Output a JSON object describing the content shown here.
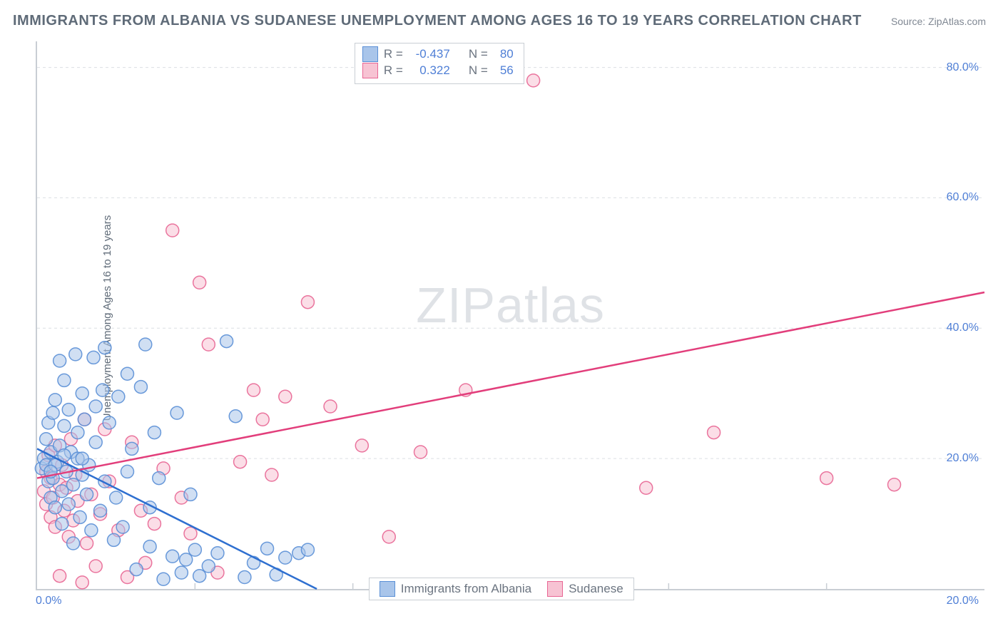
{
  "title": "IMMIGRANTS FROM ALBANIA VS SUDANESE UNEMPLOYMENT AMONG AGES 16 TO 19 YEARS CORRELATION CHART",
  "source_prefix": "Source: ",
  "source_name": "ZipAtlas.com",
  "ylabel": "Unemployment Among Ages 16 to 19 years",
  "watermark": {
    "bold": "ZIP",
    "thin": "atlas"
  },
  "chart": {
    "type": "scatter",
    "xlim": [
      0,
      21.0
    ],
    "ylim": [
      0,
      84.0
    ],
    "x_ticks": [
      0.0,
      20.0
    ],
    "x_tick_labels": [
      "0.0%",
      "20.0%"
    ],
    "y_ticks": [
      20.0,
      40.0,
      60.0,
      80.0
    ],
    "y_tick_labels": [
      "20.0%",
      "40.0%",
      "60.0%",
      "80.0%"
    ],
    "x_minor_ticks": [
      3.5,
      7.0,
      10.5,
      14.0,
      17.5
    ],
    "axis_color": "#c9ced4",
    "grid_color": "#dcdfe3",
    "background_color": "#ffffff",
    "marker_radius": 9,
    "marker_opacity": 0.55,
    "marker_stroke_opacity": 0.9,
    "line_width": 2.5,
    "series": [
      {
        "name": "Immigrants from Albania",
        "color_fill": "#a9c5ea",
        "color_stroke": "#5a8fd6",
        "line_color": "#2e6fd0",
        "R": "-0.437",
        "N": "80",
        "regression": {
          "x1": 0.0,
          "y1": 21.5,
          "x2": 6.2,
          "y2": 0.0,
          "dash_tail": true
        },
        "points": [
          [
            0.1,
            18.5
          ],
          [
            0.15,
            20.0
          ],
          [
            0.2,
            19.0
          ],
          [
            0.2,
            23.0
          ],
          [
            0.25,
            25.5
          ],
          [
            0.25,
            16.5
          ],
          [
            0.3,
            21.0
          ],
          [
            0.3,
            14.0
          ],
          [
            0.35,
            27.0
          ],
          [
            0.35,
            17.0
          ],
          [
            0.4,
            29.0
          ],
          [
            0.4,
            12.5
          ],
          [
            0.45,
            19.5
          ],
          [
            0.5,
            35.0
          ],
          [
            0.5,
            22.0
          ],
          [
            0.55,
            15.0
          ],
          [
            0.55,
            10.0
          ],
          [
            0.6,
            25.0
          ],
          [
            0.6,
            32.0
          ],
          [
            0.65,
            18.0
          ],
          [
            0.7,
            27.5
          ],
          [
            0.7,
            13.0
          ],
          [
            0.75,
            21.0
          ],
          [
            0.8,
            7.0
          ],
          [
            0.8,
            16.0
          ],
          [
            0.85,
            36.0
          ],
          [
            0.9,
            24.0
          ],
          [
            0.9,
            20.0
          ],
          [
            0.95,
            11.0
          ],
          [
            1.0,
            30.0
          ],
          [
            1.0,
            17.5
          ],
          [
            1.05,
            26.0
          ],
          [
            1.1,
            14.5
          ],
          [
            1.15,
            19.0
          ],
          [
            1.2,
            9.0
          ],
          [
            1.25,
            35.5
          ],
          [
            1.3,
            22.5
          ],
          [
            1.3,
            28.0
          ],
          [
            1.4,
            12.0
          ],
          [
            1.45,
            30.5
          ],
          [
            1.5,
            37.0
          ],
          [
            1.5,
            16.5
          ],
          [
            1.6,
            25.5
          ],
          [
            1.7,
            7.5
          ],
          [
            1.75,
            14.0
          ],
          [
            1.8,
            29.5
          ],
          [
            1.9,
            9.5
          ],
          [
            2.0,
            33.0
          ],
          [
            2.0,
            18.0
          ],
          [
            2.1,
            21.5
          ],
          [
            2.2,
            3.0
          ],
          [
            2.3,
            31.0
          ],
          [
            2.4,
            37.5
          ],
          [
            2.5,
            6.5
          ],
          [
            2.5,
            12.5
          ],
          [
            2.6,
            24.0
          ],
          [
            2.7,
            17.0
          ],
          [
            2.8,
            1.5
          ],
          [
            3.0,
            5.0
          ],
          [
            3.1,
            27.0
          ],
          [
            3.2,
            2.5
          ],
          [
            3.3,
            4.5
          ],
          [
            3.4,
            14.5
          ],
          [
            3.5,
            6.0
          ],
          [
            3.6,
            2.0
          ],
          [
            3.8,
            3.5
          ],
          [
            4.0,
            5.5
          ],
          [
            4.2,
            38.0
          ],
          [
            4.4,
            26.5
          ],
          [
            4.6,
            1.8
          ],
          [
            4.8,
            4.0
          ],
          [
            5.1,
            6.2
          ],
          [
            5.3,
            2.2
          ],
          [
            5.5,
            4.8
          ],
          [
            5.8,
            5.5
          ],
          [
            6.0,
            6.0
          ],
          [
            1.0,
            20.0
          ],
          [
            0.4,
            19.0
          ],
          [
            0.6,
            20.5
          ],
          [
            0.3,
            18.0
          ]
        ]
      },
      {
        "name": "Sudanese",
        "color_fill": "#f7c3d3",
        "color_stroke": "#e86694",
        "line_color": "#e23e7b",
        "R": "0.322",
        "N": "56",
        "regression": {
          "x1": 0.0,
          "y1": 17.0,
          "x2": 21.0,
          "y2": 45.5,
          "dash_tail": false
        },
        "points": [
          [
            0.15,
            15.0
          ],
          [
            0.2,
            18.0
          ],
          [
            0.2,
            13.0
          ],
          [
            0.25,
            20.5
          ],
          [
            0.3,
            11.0
          ],
          [
            0.3,
            17.0
          ],
          [
            0.35,
            14.0
          ],
          [
            0.4,
            22.0
          ],
          [
            0.4,
            9.5
          ],
          [
            0.5,
            16.0
          ],
          [
            0.5,
            2.0
          ],
          [
            0.55,
            19.0
          ],
          [
            0.6,
            12.0
          ],
          [
            0.65,
            15.5
          ],
          [
            0.7,
            8.0
          ],
          [
            0.75,
            23.0
          ],
          [
            0.8,
            10.5
          ],
          [
            0.85,
            17.5
          ],
          [
            0.9,
            13.5
          ],
          [
            1.0,
            1.0
          ],
          [
            1.05,
            26.0
          ],
          [
            1.1,
            7.0
          ],
          [
            1.2,
            14.5
          ],
          [
            1.3,
            3.5
          ],
          [
            1.4,
            11.5
          ],
          [
            1.5,
            24.5
          ],
          [
            1.6,
            16.5
          ],
          [
            1.8,
            9.0
          ],
          [
            2.0,
            1.8
          ],
          [
            2.1,
            22.5
          ],
          [
            2.3,
            12.0
          ],
          [
            2.4,
            4.0
          ],
          [
            2.6,
            10.0
          ],
          [
            2.8,
            18.5
          ],
          [
            3.0,
            55.0
          ],
          [
            3.2,
            14.0
          ],
          [
            3.4,
            8.5
          ],
          [
            3.6,
            47.0
          ],
          [
            3.8,
            37.5
          ],
          [
            4.0,
            2.5
          ],
          [
            4.5,
            19.5
          ],
          [
            4.8,
            30.5
          ],
          [
            5.0,
            26.0
          ],
          [
            5.2,
            17.5
          ],
          [
            5.5,
            29.5
          ],
          [
            6.0,
            44.0
          ],
          [
            6.5,
            28.0
          ],
          [
            7.2,
            22.0
          ],
          [
            7.8,
            8.0
          ],
          [
            8.5,
            21.0
          ],
          [
            9.5,
            30.5
          ],
          [
            11.0,
            78.0
          ],
          [
            13.5,
            15.5
          ],
          [
            15.0,
            24.0
          ],
          [
            17.5,
            17.0
          ],
          [
            19.0,
            16.0
          ]
        ]
      }
    ]
  },
  "stats_box": {
    "label_R": "R =",
    "label_N": "N ="
  },
  "colors": {
    "title": "#5f6b78",
    "tick_label": "#4f7fd6"
  }
}
